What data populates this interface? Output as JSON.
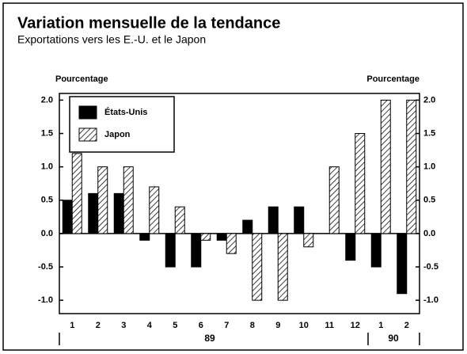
{
  "chart_data": {
    "type": "bar",
    "title": "Variation mensuelle de la tendance",
    "subtitle": "Exportations vers les E.-U. et le Japon",
    "ylabel": "Pourcentage",
    "y2label": "Pourcentage",
    "categories": [
      "1",
      "2",
      "3",
      "4",
      "5",
      "6",
      "7",
      "8",
      "9",
      "10",
      "11",
      "12",
      "1",
      "2"
    ],
    "x_groups": [
      "89",
      "90"
    ],
    "series": [
      {
        "name": "États-Unis",
        "color": "#000000",
        "pattern": "solid",
        "values": [
          0.5,
          0.6,
          0.6,
          -0.1,
          -0.5,
          -0.5,
          -0.1,
          0.2,
          0.4,
          0.4,
          0,
          -0.4,
          -0.5,
          -0.9
        ]
      },
      {
        "name": "Japon",
        "color": "#000000",
        "pattern": "hatch",
        "values": [
          1.2,
          1.0,
          1.0,
          0.7,
          0.4,
          -0.1,
          -0.3,
          -1.0,
          -1.0,
          -0.2,
          1.0,
          1.5,
          2.0,
          2.0
        ]
      }
    ],
    "ylim": [
      -1.2,
      2.1
    ],
    "yticks": [
      {
        "value": 2,
        "label": "2.0"
      },
      {
        "value": 1.5,
        "label": "1.5"
      },
      {
        "value": 1,
        "label": "1.0"
      },
      {
        "value": 0.5,
        "label": "0.5"
      },
      {
        "value": 0,
        "label": "0.0"
      },
      {
        "value": -0.5,
        "label": "-0.5"
      },
      {
        "value": -1,
        "label": "-1.0"
      }
    ],
    "y2lim": [
      -1.2,
      2.1
    ],
    "y2ticks": [
      {
        "value": 2,
        "label": "2.0"
      },
      {
        "value": 1.5,
        "label": "1.5"
      },
      {
        "value": 1,
        "label": "1.0"
      },
      {
        "value": 0.5,
        "label": "0.5"
      },
      {
        "value": 0,
        "label": "0.0"
      },
      {
        "value": -0.5,
        "label": "-0.5"
      },
      {
        "value": -1,
        "label": "-1.0"
      }
    ],
    "grid": false
  }
}
